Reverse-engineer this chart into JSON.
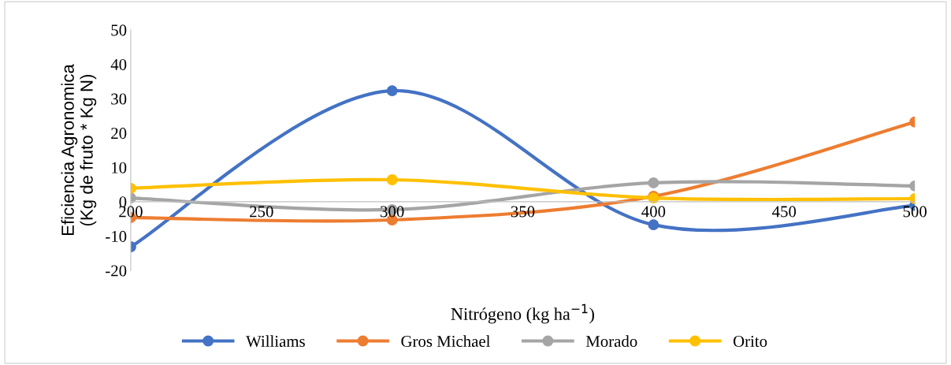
{
  "chart_data": {
    "type": "line",
    "xlabel": "Nitrógeno (kg ha$^{−1}$)",
    "ylabel": "Eficiencia Agronomica\n(Kg de fruto * Kg N)",
    "x": [
      200,
      300,
      400,
      500
    ],
    "xlim": [
      200,
      500
    ],
    "xticks": [
      200,
      250,
      300,
      350,
      400,
      450,
      500
    ],
    "ylim": [
      -20,
      50
    ],
    "yticks": [
      -20,
      -10,
      0,
      10,
      20,
      30,
      40,
      50
    ],
    "grid": false,
    "legend": "bottom",
    "marker": "circle",
    "line_style": "solid",
    "series": [
      {
        "name": "Williams",
        "color": "#4472c4",
        "values": [
          -13.1,
          32.3,
          -6.7,
          -1.1
        ]
      },
      {
        "name": "Gros Michael",
        "color": "#ed7d31",
        "values": [
          -4.6,
          -5.3,
          1.6,
          23.2
        ]
      },
      {
        "name": "Morado",
        "color": "#a5a5a5",
        "values": [
          1.1,
          -2.3,
          5.5,
          4.6
        ]
      },
      {
        "name": "Orito",
        "color": "#ffc000",
        "values": [
          3.9,
          6.4,
          1.1,
          0.9
        ]
      }
    ]
  }
}
